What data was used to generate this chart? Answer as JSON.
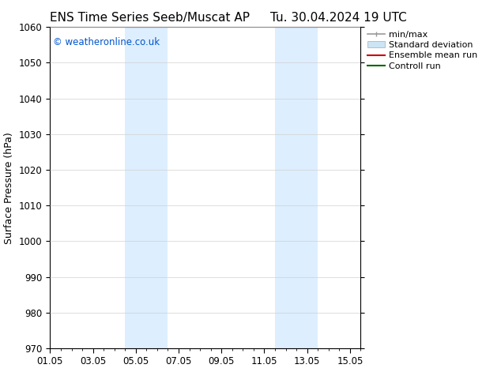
{
  "title_left": "ENS Time Series Seeb/Muscat AP",
  "title_right": "Tu. 30.04.2024 19 UTC",
  "ylabel": "Surface Pressure (hPa)",
  "ylim": [
    970,
    1060
  ],
  "yticks": [
    970,
    980,
    990,
    1000,
    1010,
    1020,
    1030,
    1040,
    1050,
    1060
  ],
  "xlim_start": 0,
  "xlim_end": 14.5,
  "xtick_labels": [
    "01.05",
    "03.05",
    "05.05",
    "07.05",
    "09.05",
    "11.05",
    "13.05",
    "15.05"
  ],
  "xtick_positions": [
    0,
    2,
    4,
    6,
    8,
    10,
    12,
    14
  ],
  "blue_bands": [
    {
      "x_start": 3.5,
      "x_end": 5.5
    },
    {
      "x_start": 10.5,
      "x_end": 12.5
    }
  ],
  "background_color": "#ffffff",
  "band_color": "#ddeeff",
  "grid_color": "#d0d0d0",
  "watermark_text": "© weatheronline.co.uk",
  "watermark_color": "#0055cc",
  "title_fontsize": 11,
  "axis_label_fontsize": 9,
  "tick_fontsize": 8.5,
  "legend_fontsize": 8
}
